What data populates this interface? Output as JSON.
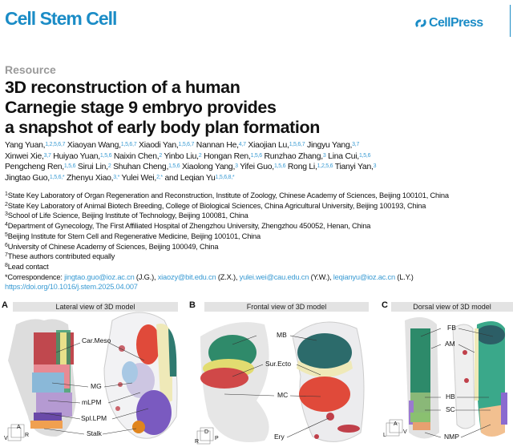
{
  "header": {
    "journal": "Cell Stem Cell",
    "publisher": "CellPress",
    "publisher_icon": "cellpress-logo-icon",
    "brand_color": "#1b8cc6"
  },
  "article_type": "Resource",
  "title_lines": [
    "3D reconstruction of a human",
    "Carnegie stage 9 embryo provides",
    "a snapshot of early body plan formation"
  ],
  "authors": [
    [
      {
        "n": "Yang Yuan,",
        "s": "1,2,5,6,7"
      },
      {
        "n": " Xiaoyan Wang,",
        "s": "1,5,6,7"
      },
      {
        "n": " Xiaodi Yan,",
        "s": "1,5,6,7"
      },
      {
        "n": " Nannan He,",
        "s": "4,7"
      },
      {
        "n": " Xiaojian Lu,",
        "s": "1,5,6,7"
      },
      {
        "n": " Jingyu Yang,",
        "s": "3,7"
      }
    ],
    [
      {
        "n": "Xinwei Xie,",
        "s": "3,7"
      },
      {
        "n": " Huiyao Yuan,",
        "s": "1,5,6"
      },
      {
        "n": " Naixin Chen,",
        "s": "2"
      },
      {
        "n": " Yinbo Liu,",
        "s": "2"
      },
      {
        "n": " Hongan Ren,",
        "s": "1,5,6"
      },
      {
        "n": " Runzhao Zhang,",
        "s": "3"
      },
      {
        "n": " Lina Cui,",
        "s": "1,5,6"
      }
    ],
    [
      {
        "n": "Pengcheng Ren,",
        "s": "1,5,6"
      },
      {
        "n": " Sirui Lin,",
        "s": "2"
      },
      {
        "n": " Shuhan Cheng,",
        "s": "1,5,6"
      },
      {
        "n": " Xiaolong Yang,",
        "s": "3"
      },
      {
        "n": " Yifei Guo,",
        "s": "1,5,6"
      },
      {
        "n": " Rong Li,",
        "s": "1,2,5,6"
      },
      {
        "n": " Tianyi Yan,",
        "s": "3"
      }
    ],
    [
      {
        "n": "Jingtao Guo,",
        "s": "1,5,6,*"
      },
      {
        "n": " Zhenyu Xiao,",
        "s": "3,*"
      },
      {
        "n": " Yulei Wei,",
        "s": "2,*"
      },
      {
        "n": " and Leqian Yu",
        "s": "1,5,6,8,*"
      }
    ]
  ],
  "affiliations": [
    {
      "s": "1",
      "t": "State Key Laboratory of Organ Regeneration and Reconstruction, Institute of Zoology, Chinese Academy of Sciences, Beijing 100101, China"
    },
    {
      "s": "2",
      "t": "State Key Laboratory of Animal Biotech Breeding, College of Biological Sciences, China Agricultural University, Beijing 100193, China"
    },
    {
      "s": "3",
      "t": "School of Life Science, Beijing Institute of Technology, Beijing 100081, China"
    },
    {
      "s": "4",
      "t": "Department of Gynecology, The First Affiliated Hospital of Zhengzhou University, Zhengzhou 450052, Henan, China"
    },
    {
      "s": "5",
      "t": "Beijing Institute for Stem Cell and Regenerative Medicine, Beijing 100101, China"
    },
    {
      "s": "6",
      "t": "University of Chinese Academy of Sciences, Beijing 100049, China"
    },
    {
      "s": "7",
      "t": "These authors contributed equally"
    },
    {
      "s": "8",
      "t": "Lead contact"
    }
  ],
  "correspondence": {
    "prefix": "*Correspondence: ",
    "items": [
      {
        "email": "jingtao.guo@ioz.ac.cn",
        "who": " (J.G.), "
      },
      {
        "email": "xiaozy@bit.edu.cn",
        "who": " (Z.X.), "
      },
      {
        "email": "yulei.wei@cau.edu.cn",
        "who": " (Y.W.), "
      },
      {
        "email": "leqianyu@ioz.ac.cn",
        "who": " (L.Y.)"
      }
    ]
  },
  "doi": "https://doi.org/10.1016/j.stem.2025.04.007",
  "figure": {
    "panels": [
      {
        "letter": "A",
        "title": "Lateral view of 3D model",
        "labels": [
          "Car.Meso",
          "MG",
          "mLPM",
          "Spl.LPM",
          "Stalk"
        ],
        "axes": [
          "A",
          "V",
          "R"
        ]
      },
      {
        "letter": "B",
        "title": "Frontal view of 3D model",
        "labels": [
          "MB",
          "Sur.Ecto",
          "MC",
          "Ery"
        ],
        "axes": [
          "D",
          "R",
          "P"
        ]
      },
      {
        "letter": "C",
        "title": "Dorsal view of 3D model",
        "labels": [
          "FB",
          "AM",
          "HB",
          "SC",
          "NMP"
        ],
        "axes": [
          "A",
          "L",
          "V"
        ]
      }
    ]
  }
}
